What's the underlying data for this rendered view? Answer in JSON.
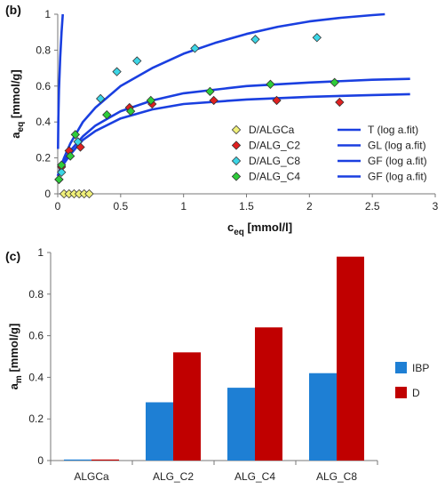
{
  "chart_data": [
    {
      "type": "scatter",
      "panel_label": "(b)",
      "xlabel": "c",
      "xlabel_sub": "eq",
      "xlabel_unit": " [mmol/l]",
      "ylabel": "a",
      "ylabel_sub": "eq",
      "ylabel_unit": " [mmol/g]",
      "xlim": [
        0,
        3
      ],
      "ylim": [
        0,
        1
      ],
      "xticks": [
        "0",
        "0.5",
        "1",
        "1.5",
        "2",
        "2.5",
        "3"
      ],
      "yticks": [
        "0",
        "0.2",
        "0.4",
        "0.6",
        "0.8",
        "1"
      ],
      "grid": false,
      "legend_position": "bottom-right",
      "series": [
        {
          "name": "D/ALGCa",
          "color": "#f0f07a",
          "marker": "diamond",
          "x": [
            0.05,
            0.09,
            0.13,
            0.17,
            0.21,
            0.25
          ],
          "y": [
            0,
            0,
            0,
            0,
            0,
            0
          ]
        },
        {
          "name": "D/ALG_C2",
          "color": "#e02020",
          "marker": "diamond",
          "x": [
            0.01,
            0.03,
            0.09,
            0.18,
            0.57,
            0.75,
            1.24,
            1.74,
            2.24
          ],
          "y": [
            0.08,
            0.15,
            0.24,
            0.26,
            0.48,
            0.5,
            0.52,
            0.52,
            0.51
          ]
        },
        {
          "name": "D/ALG_C8",
          "color": "#3cd6e6",
          "marker": "diamond",
          "x": [
            0.03,
            0.16,
            0.34,
            0.47,
            0.63,
            1.09,
            1.57,
            2.06
          ],
          "y": [
            0.12,
            0.29,
            0.53,
            0.68,
            0.74,
            0.81,
            0.86,
            0.87
          ]
        },
        {
          "name": "D/ALG_C4",
          "color": "#2ecc3a",
          "marker": "diamond",
          "x": [
            0.01,
            0.03,
            0.1,
            0.14,
            0.39,
            0.58,
            0.74,
            1.21,
            1.69,
            2.2
          ],
          "y": [
            0.08,
            0.16,
            0.21,
            0.33,
            0.44,
            0.46,
            0.52,
            0.57,
            0.61,
            0.62
          ]
        }
      ],
      "fits": [
        {
          "name": "T (log a.fit)",
          "color": "#1a3fe0",
          "x": [
            0.002,
            0.005,
            0.01,
            0.02,
            0.03,
            0.04
          ],
          "y": [
            0.25,
            0.42,
            0.58,
            0.76,
            0.9,
            1.0
          ]
        },
        {
          "name": "GL (log a.fit)",
          "color": "#1a3fe0",
          "x": [
            0,
            0.05,
            0.1,
            0.2,
            0.3,
            0.5,
            0.75,
            1.0,
            1.25,
            1.5,
            1.75,
            2.0,
            2.25,
            2.5,
            2.6
          ],
          "y": [
            0.1,
            0.2,
            0.28,
            0.4,
            0.48,
            0.6,
            0.7,
            0.78,
            0.84,
            0.89,
            0.93,
            0.96,
            0.98,
            0.995,
            1.0
          ]
        },
        {
          "name": "GF (log a.fit)",
          "color": "#1a3fe0",
          "x": [
            0,
            0.05,
            0.1,
            0.2,
            0.3,
            0.5,
            0.75,
            1.0,
            1.5,
            2.0,
            2.5,
            2.8
          ],
          "y": [
            0.1,
            0.18,
            0.24,
            0.32,
            0.38,
            0.46,
            0.52,
            0.56,
            0.6,
            0.62,
            0.635,
            0.64
          ]
        },
        {
          "name": "GF (log a.fit)",
          "color": "#1a3fe0",
          "x": [
            0,
            0.05,
            0.1,
            0.2,
            0.3,
            0.5,
            0.75,
            1.0,
            1.5,
            2.0,
            2.5,
            2.8
          ],
          "y": [
            0.1,
            0.17,
            0.22,
            0.3,
            0.35,
            0.42,
            0.47,
            0.5,
            0.525,
            0.54,
            0.55,
            0.555
          ]
        }
      ]
    },
    {
      "type": "bar",
      "panel_label": "(c)",
      "ylabel": "a",
      "ylabel_sub": "m",
      "ylabel_unit": " [mmol/g]",
      "categories": [
        "ALGCa",
        "ALG_C2",
        "ALG_C4",
        "ALG_C8"
      ],
      "ylim": [
        0,
        1
      ],
      "yticks": [
        "0",
        "0.2",
        "0.4",
        "0.6",
        "0.8",
        "1"
      ],
      "grid": false,
      "legend_position": "right",
      "series": [
        {
          "name": "IBP",
          "color": "#1e7fd4",
          "values": [
            0.005,
            0.28,
            0.35,
            0.42
          ]
        },
        {
          "name": "D",
          "color": "#c00000",
          "values": [
            0.005,
            0.52,
            0.64,
            0.98
          ]
        }
      ]
    }
  ]
}
